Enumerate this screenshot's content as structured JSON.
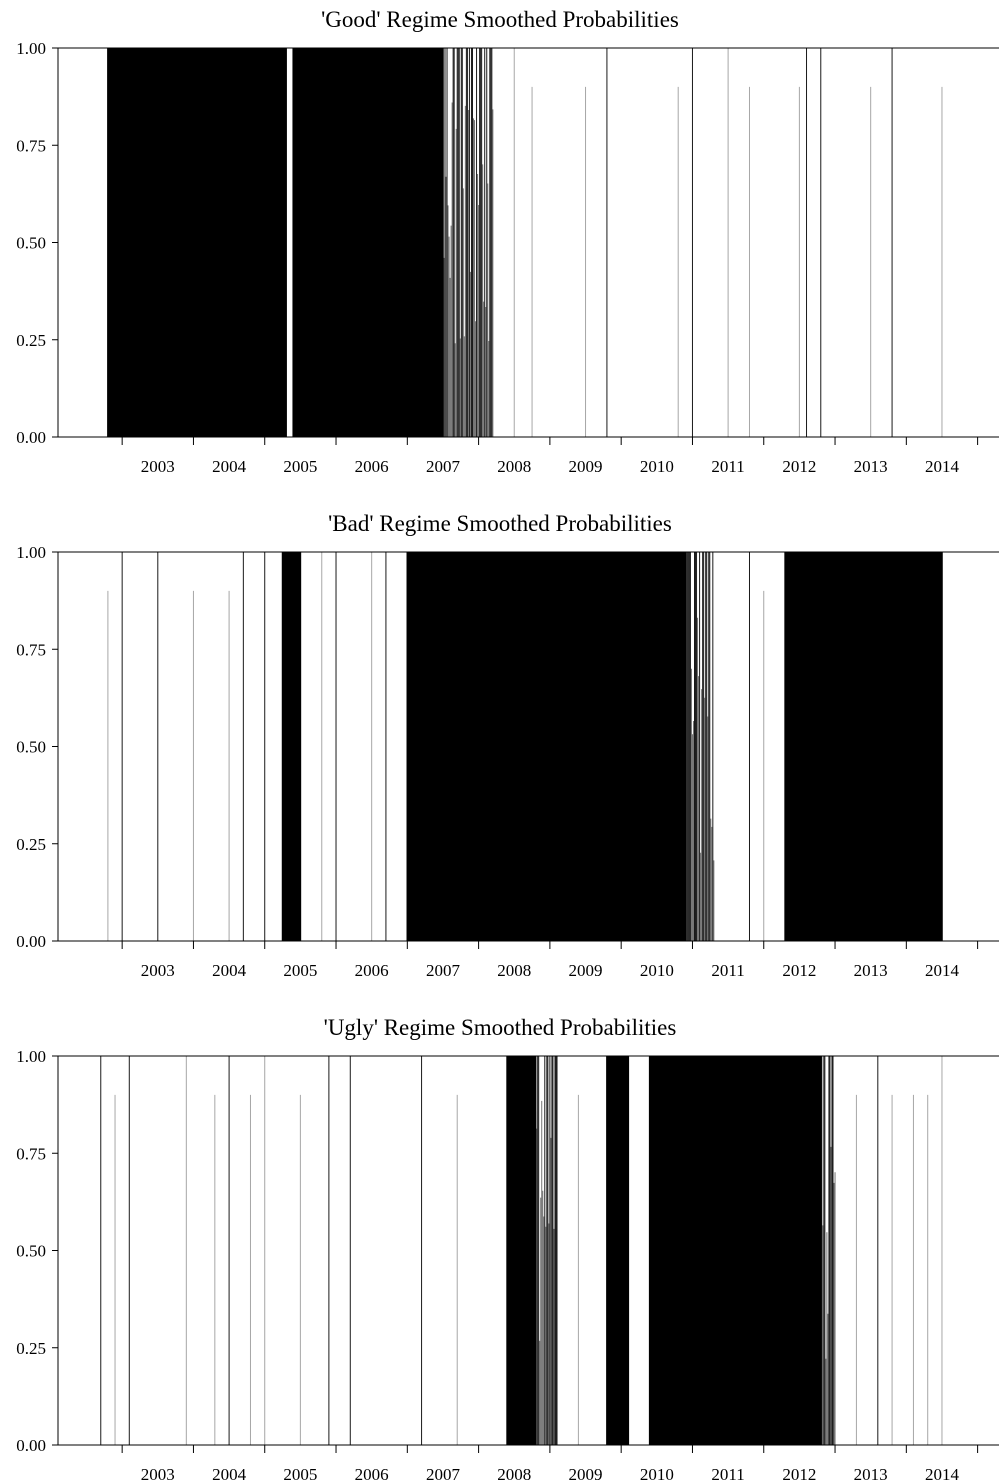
{
  "chart_data": [
    {
      "type": "area",
      "title": "'Good' Regime Smoothed Probabilities",
      "xlabel": "",
      "ylabel": "",
      "ylim": [
        0,
        1
      ],
      "xlim": [
        2002.1,
        2015.3
      ],
      "y_ticks": [
        "0.00",
        "0.25",
        "0.50",
        "0.75",
        "1.00"
      ],
      "x_ticks": [
        "2003",
        "2004",
        "2005",
        "2006",
        "2007",
        "2008",
        "2009",
        "2010",
        "2011",
        "2012",
        "2013",
        "2014"
      ],
      "grid": false,
      "series_color": "#000000",
      "high_probability_periods": [
        [
          2002.8,
          2005.3
        ],
        [
          2005.4,
          2007.2
        ],
        [
          2007.2,
          2007.5
        ]
      ],
      "mixed_periods": [
        [
          2007.5,
          2008.2
        ]
      ],
      "isolated_spikes": [
        2008.5,
        2008.75,
        2009.5,
        2009.8,
        2010.8,
        2011.0,
        2011.5,
        2011.8,
        2012.5,
        2012.6,
        2012.8,
        2013.5,
        2013.8,
        2014.5
      ]
    },
    {
      "type": "area",
      "title": "'Bad' Regime Smoothed Probabilities",
      "xlabel": "",
      "ylabel": "",
      "ylim": [
        0,
        1
      ],
      "xlim": [
        2002.1,
        2015.3
      ],
      "y_ticks": [
        "0.00",
        "0.25",
        "0.50",
        "0.75",
        "1.00"
      ],
      "x_ticks": [
        "2003",
        "2004",
        "2005",
        "2006",
        "2007",
        "2008",
        "2009",
        "2010",
        "2011",
        "2012",
        "2013",
        "2014"
      ],
      "grid": false,
      "series_color": "#000000",
      "high_probability_periods": [
        [
          2005.25,
          2005.5
        ],
        [
          2007.0,
          2008.8
        ],
        [
          2008.8,
          2009.6
        ],
        [
          2009.6,
          2010.9
        ],
        [
          2012.3,
          2013.5
        ],
        [
          2013.5,
          2014.5
        ]
      ],
      "mixed_periods": [
        [
          2010.9,
          2011.3
        ]
      ],
      "isolated_spikes": [
        2002.8,
        2003.0,
        2003.5,
        2004.0,
        2004.5,
        2004.7,
        2005.0,
        2005.8,
        2006.0,
        2006.5,
        2006.7,
        2011.8,
        2012.0
      ]
    },
    {
      "type": "area",
      "title": "'Ugly' Regime Smoothed Probabilities",
      "xlabel": "",
      "ylabel": "",
      "ylim": [
        0,
        1
      ],
      "xlim": [
        2002.1,
        2015.3
      ],
      "y_ticks": [
        "0.00",
        "0.25",
        "0.50",
        "0.75",
        "1.00"
      ],
      "x_ticks": [
        "2003",
        "2004",
        "2005",
        "2006",
        "2007",
        "2008",
        "2009",
        "2010",
        "2011",
        "2012",
        "2013",
        "2014"
      ],
      "grid": false,
      "series_color": "#000000",
      "high_probability_periods": [
        [
          2008.4,
          2008.8
        ],
        [
          2009.8,
          2010.1
        ],
        [
          2010.4,
          2012.2
        ],
        [
          2012.2,
          2012.8
        ]
      ],
      "mixed_periods": [
        [
          2008.8,
          2009.1
        ],
        [
          2012.8,
          2013.0
        ]
      ],
      "isolated_spikes": [
        2002.7,
        2002.9,
        2003.1,
        2003.9,
        2004.3,
        2004.5,
        2004.8,
        2005.0,
        2005.5,
        2005.9,
        2006.2,
        2007.2,
        2007.7,
        2009.4,
        2013.3,
        2013.6,
        2013.8,
        2014.1,
        2014.3,
        2014.5
      ]
    }
  ]
}
